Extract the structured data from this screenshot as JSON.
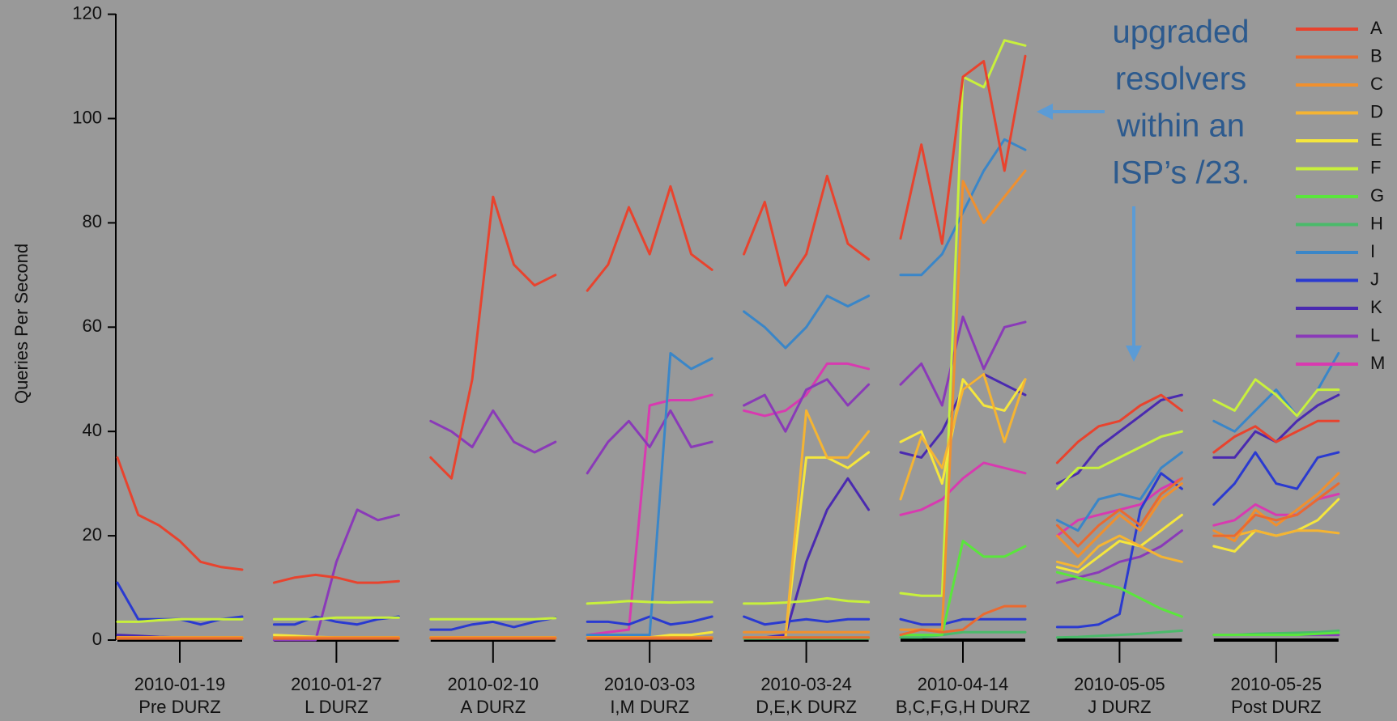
{
  "chart_data": {
    "type": "line",
    "ylabel": "Queries Per Second",
    "categories": [
      "2010-01-19",
      "2010-01-27",
      "2010-02-10",
      "2010-03-03",
      "2010-03-24",
      "2010-04-14",
      "2010-05-05",
      "2010-05-25"
    ],
    "sublabels": [
      "Pre DURZ",
      "L DURZ",
      "A DURZ",
      "I,M DURZ",
      "D,E,K DURZ",
      "B,C,F,G,H DURZ",
      "J DURZ",
      "Post DURZ"
    ],
    "ylim": [
      0,
      120
    ],
    "yticks": [
      0,
      20,
      40,
      60,
      80,
      100,
      120
    ],
    "annotation": [
      "upgraded",
      "resolvers",
      "within an",
      "ISP’s /23."
    ],
    "series": [
      {
        "name": "A",
        "color": "#e8432e",
        "values": [
          [
            35,
            24,
            22,
            19,
            15,
            14,
            13.5
          ],
          [
            11,
            12,
            12.5,
            12,
            11,
            11,
            11.3
          ],
          [
            35,
            31,
            50,
            85,
            72,
            68,
            70
          ],
          [
            67,
            72,
            83,
            74,
            87,
            74,
            71
          ],
          [
            74,
            84,
            68,
            74,
            89,
            76,
            73
          ],
          [
            77,
            95,
            76,
            108,
            111,
            90,
            112
          ],
          [
            34,
            38,
            41,
            42,
            45,
            47,
            44
          ],
          [
            36,
            39,
            41,
            38,
            40,
            42,
            42
          ]
        ]
      },
      {
        "name": "B",
        "color": "#ea6a30",
        "values": [
          [
            0.3,
            0.3,
            0.3,
            0.3,
            0.3,
            0.3,
            0.3
          ],
          [
            0.3,
            0.3,
            0.3,
            0.3,
            0.3,
            0.3,
            0.3
          ],
          [
            0.3,
            0.3,
            0.3,
            0.3,
            0.3,
            0.3,
            0.3
          ],
          [
            0.3,
            0.3,
            0.3,
            0.3,
            0.3,
            0.3,
            0.3
          ],
          [
            0.5,
            0.5,
            0.5,
            0.5,
            0.5,
            0.5,
            0.5
          ],
          [
            1,
            2,
            1.5,
            2,
            5,
            6.5,
            6.5
          ],
          [
            22,
            18,
            22,
            25,
            22,
            28,
            31
          ],
          [
            20,
            20,
            24,
            23,
            24,
            27,
            30
          ]
        ]
      },
      {
        "name": "C",
        "color": "#f0902e",
        "values": [
          [
            0.5,
            0.5,
            0.5,
            0.5,
            0.5,
            0.5,
            0.5
          ],
          [
            0.5,
            0.5,
            0.5,
            0.5,
            0.5,
            0.5,
            0.5
          ],
          [
            0.5,
            0.5,
            0.5,
            0.5,
            0.5,
            0.5,
            0.5
          ],
          [
            0.5,
            0.5,
            0.5,
            0.5,
            0.5,
            0.5,
            0.5
          ],
          [
            1.5,
            1.5,
            1.5,
            1.5,
            1.5,
            1.5,
            1.5
          ],
          [
            2,
            2,
            2,
            88,
            80,
            85,
            90
          ],
          [
            20,
            16,
            20,
            24,
            21,
            27,
            30
          ],
          [
            21,
            19,
            25,
            22,
            25,
            28,
            32
          ]
        ]
      },
      {
        "name": "D",
        "color": "#f5b432",
        "values": [
          [
            0.5,
            0.5,
            0.5,
            0.5,
            0.5,
            0.5,
            0.5
          ],
          [
            0.5,
            0.5,
            0.5,
            0.5,
            0.5,
            0.5,
            0.5
          ],
          [
            0.5,
            0.5,
            0.5,
            0.5,
            0.5,
            0.5,
            0.5
          ],
          [
            0.5,
            0.5,
            0.5,
            0.5,
            0.5,
            0.5,
            0.5
          ],
          [
            0.5,
            0.5,
            0.5,
            44,
            35,
            35,
            40
          ],
          [
            27,
            39,
            33,
            48,
            51,
            38,
            50
          ],
          [
            15,
            14,
            18,
            20,
            18,
            16,
            15
          ],
          [
            20,
            20,
            21,
            20,
            21,
            21,
            20.5
          ]
        ]
      },
      {
        "name": "E",
        "color": "#f5e63c",
        "values": [
          [
            0.5,
            0.5,
            0.5,
            0.5,
            0.5,
            0.5,
            0.5
          ],
          [
            1,
            0.8,
            0.6,
            0.5,
            0.5,
            0.5,
            0.5
          ],
          [
            0.5,
            0.5,
            0.5,
            0.5,
            0.5,
            0.5,
            0.5
          ],
          [
            0.5,
            0.5,
            0.5,
            0.5,
            1,
            1,
            1.5
          ],
          [
            0.5,
            0.5,
            0.5,
            35,
            35,
            33,
            36
          ],
          [
            38,
            40,
            30,
            50,
            45,
            44,
            50
          ],
          [
            14,
            13,
            16,
            19,
            18,
            21,
            24
          ],
          [
            18,
            17,
            21,
            20,
            21,
            23,
            27
          ]
        ]
      },
      {
        "name": "F",
        "color": "#c8f03c",
        "values": [
          [
            3.5,
            3.5,
            3.8,
            4,
            4,
            4,
            4
          ],
          [
            4,
            4,
            4,
            4.3,
            4.3,
            4.3,
            4.3
          ],
          [
            4,
            4,
            4,
            4,
            4,
            4,
            4.2
          ],
          [
            7,
            7.2,
            7.5,
            7.3,
            7.2,
            7.3,
            7.3
          ],
          [
            7,
            7,
            7.2,
            7.5,
            8,
            7.5,
            7.3
          ],
          [
            9,
            8.5,
            8.5,
            108,
            106,
            115,
            114
          ],
          [
            29,
            33,
            33,
            35,
            37,
            39,
            40
          ],
          [
            46,
            44,
            50,
            47,
            43,
            48,
            48
          ]
        ]
      },
      {
        "name": "G",
        "color": "#5ae63c",
        "values": [
          [
            0.5,
            0.5,
            0.5,
            0.5,
            0.5,
            0.5,
            0.5
          ],
          [
            0.5,
            0.5,
            0.5,
            0.5,
            0.5,
            0.5,
            0.5
          ],
          [
            0.5,
            0.5,
            0.5,
            0.5,
            0.5,
            0.5,
            0.5
          ],
          [
            0.5,
            0.5,
            0.5,
            0.5,
            0.5,
            0.5,
            0.5
          ],
          [
            0.5,
            0.5,
            0.5,
            0.5,
            0.5,
            0.5,
            0.5
          ],
          [
            1,
            1,
            1,
            19,
            16,
            16,
            18
          ],
          [
            13,
            12,
            11,
            10,
            8,
            6,
            4.5
          ],
          [
            1,
            1,
            1,
            1,
            1,
            1.2,
            1.4
          ]
        ]
      },
      {
        "name": "H",
        "color": "#4aba6a",
        "values": [
          [
            0.3,
            0.3,
            0.3,
            0.3,
            0.3,
            0.3,
            0.3
          ],
          [
            0.3,
            0.3,
            0.3,
            0.3,
            0.3,
            0.3,
            0.3
          ],
          [
            0.3,
            0.3,
            0.3,
            0.3,
            0.3,
            0.3,
            0.3
          ],
          [
            0.3,
            0.3,
            0.3,
            0.3,
            0.3,
            0.3,
            0.3
          ],
          [
            0.3,
            0.3,
            0.3,
            0.3,
            0.3,
            0.3,
            0.3
          ],
          [
            0.5,
            0.5,
            1,
            1.5,
            1.5,
            1.5,
            1.5
          ],
          [
            0.5,
            0.6,
            0.8,
            1,
            1.2,
            1.5,
            1.8
          ],
          [
            1,
            1,
            1.2,
            1.3,
            1.4,
            1.5,
            1.8
          ]
        ]
      },
      {
        "name": "I",
        "color": "#3a86c8",
        "values": [
          [
            0.5,
            0.5,
            0.5,
            0.5,
            0.5,
            0.5,
            0.5
          ],
          [
            0.5,
            0.5,
            0.5,
            0.5,
            0.5,
            0.5,
            0.5
          ],
          [
            0.5,
            0.5,
            0.5,
            0.5,
            0.5,
            0.5,
            0.5
          ],
          [
            1,
            1,
            1,
            1,
            55,
            52,
            54
          ],
          [
            63,
            60,
            56,
            60,
            66,
            64,
            66
          ],
          [
            70,
            70,
            74,
            82,
            90,
            96,
            94
          ],
          [
            23,
            21,
            27,
            28,
            27,
            33,
            36
          ],
          [
            42,
            40,
            44,
            48,
            43,
            48,
            55
          ]
        ]
      },
      {
        "name": "J",
        "color": "#2a3ad0",
        "values": [
          [
            11,
            4,
            4,
            4,
            3,
            4,
            4.5
          ],
          [
            3,
            3,
            4.5,
            3.5,
            3,
            4,
            4.5
          ],
          [
            2,
            2,
            3,
            3.5,
            2.5,
            3.5,
            4.3
          ],
          [
            3.5,
            3.5,
            3,
            4.5,
            3,
            3.5,
            4.5
          ],
          [
            4.5,
            3,
            3.5,
            4,
            3.5,
            4,
            4
          ],
          [
            4,
            3,
            3,
            4,
            4,
            4,
            4
          ],
          [
            2.5,
            2.5,
            3,
            5,
            25,
            32,
            29
          ],
          [
            26,
            30,
            36,
            30,
            29,
            35,
            36
          ]
        ]
      },
      {
        "name": "K",
        "color": "#4a2ab0",
        "values": [
          [
            1,
            0.8,
            0.6,
            0.5,
            0.5,
            0.5,
            0.5
          ],
          [
            0.5,
            0.5,
            0.5,
            0.5,
            0.5,
            0.5,
            0.5
          ],
          [
            0.5,
            0.5,
            0.5,
            0.5,
            0.5,
            0.5,
            0.5
          ],
          [
            0.5,
            0.5,
            0.5,
            0.5,
            0.5,
            0.5,
            0.5
          ],
          [
            0.5,
            0.5,
            1,
            15,
            25,
            31,
            25
          ],
          [
            36,
            35,
            40,
            48,
            51,
            49,
            47
          ],
          [
            30,
            32,
            37,
            40,
            43,
            46,
            47
          ],
          [
            35,
            35,
            40,
            38,
            42,
            45,
            47
          ]
        ]
      },
      {
        "name": "L",
        "color": "#8a3ab8",
        "values": [
          [
            0.5,
            0.5,
            0.5,
            0.5,
            0.5,
            0.5,
            0.5
          ],
          [
            0,
            0,
            0,
            15,
            25,
            23,
            24
          ],
          [
            42,
            40,
            37,
            44,
            38,
            36,
            38
          ],
          [
            32,
            38,
            42,
            37,
            44,
            37,
            38
          ],
          [
            45,
            47,
            40,
            48,
            50,
            45,
            49
          ],
          [
            49,
            53,
            45,
            62,
            52,
            60,
            61
          ],
          [
            11,
            12,
            13,
            15,
            16,
            18,
            21
          ],
          [
            1,
            1,
            1,
            1,
            1,
            1,
            1
          ]
        ]
      },
      {
        "name": "M",
        "color": "#d83ab0",
        "values": [
          [
            0.5,
            0.5,
            0.5,
            0.5,
            0.5,
            0.5,
            0.5
          ],
          [
            0.5,
            0.5,
            0.5,
            0.5,
            0.5,
            0.5,
            0.5
          ],
          [
            0.5,
            0.5,
            0.5,
            0.5,
            0.5,
            0.5,
            0.5
          ],
          [
            1,
            1.5,
            2,
            45,
            46,
            46,
            47
          ],
          [
            44,
            43,
            44,
            47,
            53,
            53,
            52
          ],
          [
            24,
            25,
            27,
            31,
            34,
            33,
            32
          ],
          [
            20,
            23,
            24,
            25,
            26,
            29,
            31
          ],
          [
            22,
            23,
            26,
            24,
            24,
            27,
            28
          ]
        ]
      }
    ]
  }
}
